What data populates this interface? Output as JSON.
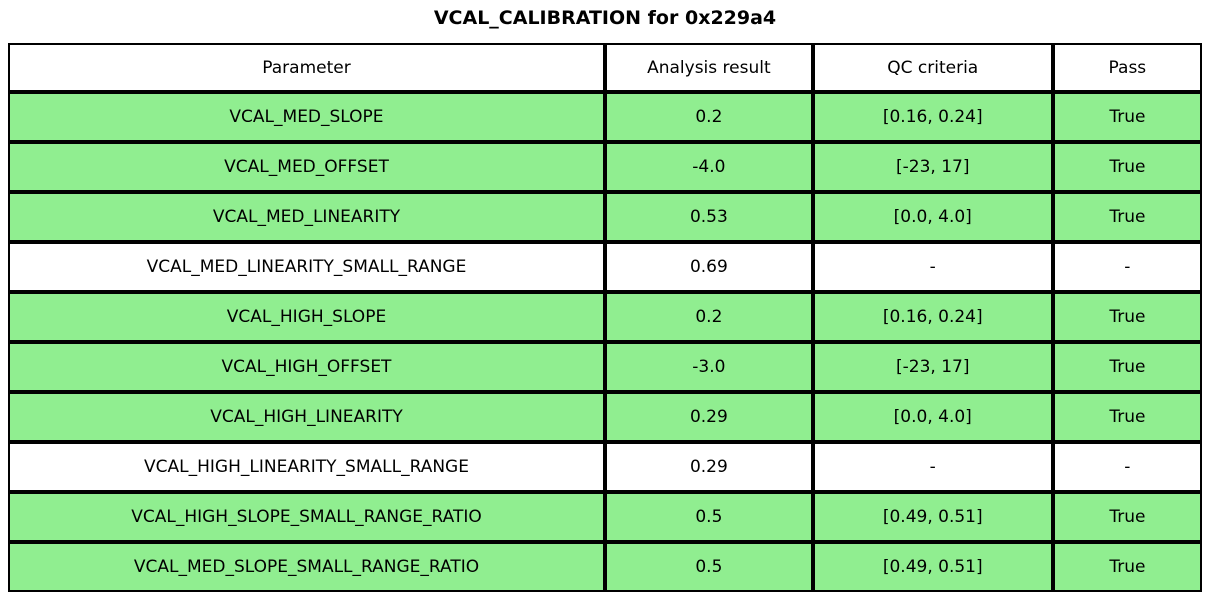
{
  "title": "VCAL_CALIBRATION for 0x229a4",
  "colors": {
    "pass_row_background": "#90ee90",
    "default_row_background": "#ffffff",
    "border": "#000000",
    "text": "#000000"
  },
  "chart_data": {
    "type": "table",
    "title": "VCAL_CALIBRATION for 0x229a4",
    "columns": [
      "Parameter",
      "Analysis result",
      "QC criteria",
      "Pass"
    ],
    "rows": [
      {
        "parameter": "VCAL_MED_SLOPE",
        "analysis_result": "0.2",
        "qc_criteria": "[0.16, 0.24]",
        "pass": "True",
        "highlight": true
      },
      {
        "parameter": "VCAL_MED_OFFSET",
        "analysis_result": "-4.0",
        "qc_criteria": "[-23, 17]",
        "pass": "True",
        "highlight": true
      },
      {
        "parameter": "VCAL_MED_LINEARITY",
        "analysis_result": "0.53",
        "qc_criteria": "[0.0, 4.0]",
        "pass": "True",
        "highlight": true
      },
      {
        "parameter": "VCAL_MED_LINEARITY_SMALL_RANGE",
        "analysis_result": "0.69",
        "qc_criteria": "-",
        "pass": "-",
        "highlight": false
      },
      {
        "parameter": "VCAL_HIGH_SLOPE",
        "analysis_result": "0.2",
        "qc_criteria": "[0.16, 0.24]",
        "pass": "True",
        "highlight": true
      },
      {
        "parameter": "VCAL_HIGH_OFFSET",
        "analysis_result": "-3.0",
        "qc_criteria": "[-23, 17]",
        "pass": "True",
        "highlight": true
      },
      {
        "parameter": "VCAL_HIGH_LINEARITY",
        "analysis_result": "0.29",
        "qc_criteria": "[0.0, 4.0]",
        "pass": "True",
        "highlight": true
      },
      {
        "parameter": "VCAL_HIGH_LINEARITY_SMALL_RANGE",
        "analysis_result": "0.29",
        "qc_criteria": "-",
        "pass": "-",
        "highlight": false
      },
      {
        "parameter": "VCAL_HIGH_SLOPE_SMALL_RANGE_RATIO",
        "analysis_result": "0.5",
        "qc_criteria": "[0.49, 0.51]",
        "pass": "True",
        "highlight": true
      },
      {
        "parameter": "VCAL_MED_SLOPE_SMALL_RANGE_RATIO",
        "analysis_result": "0.5",
        "qc_criteria": "[0.49, 0.51]",
        "pass": "True",
        "highlight": true
      }
    ]
  }
}
